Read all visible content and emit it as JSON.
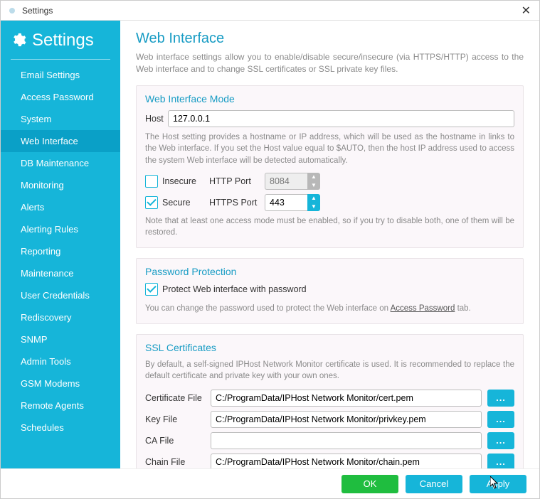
{
  "window": {
    "title": "Settings"
  },
  "sidebar": {
    "header": "Settings",
    "items": [
      "Email Settings",
      "Access Password",
      "System",
      "Web Interface",
      "DB Maintenance",
      "Monitoring",
      "Alerts",
      "Alerting Rules",
      "Reporting",
      "Maintenance",
      "User Credentials",
      "Rediscovery",
      "SNMP",
      "Admin Tools",
      "GSM Modems",
      "Remote Agents",
      "Schedules"
    ],
    "active_index": 3
  },
  "page": {
    "title": "Web Interface",
    "subtitle": "Web interface settings allow you to enable/disable secure/insecure (via HTTPS/HTTP) access to the Web interface and to change SSL certificates or SSL private key files."
  },
  "mode": {
    "section_title": "Web Interface Mode",
    "host_label": "Host",
    "host_value": "127.0.0.1",
    "host_note": "The Host setting provides a hostname or IP address, which will be used as the hostname in links to the Web interface. If you set the Host value equal to $AUTO, then the host IP address used to access the system Web interface will be detected automatically.",
    "insecure": {
      "checked": false,
      "label": "Insecure",
      "port_label": "HTTP Port",
      "port": "8084"
    },
    "secure": {
      "checked": true,
      "label": "Secure",
      "port_label": "HTTPS Port",
      "port": "443"
    },
    "bottom_note": "Note that at least one access mode must be enabled, so if you try to disable both, one of them will be restored."
  },
  "password": {
    "section_title": "Password Protection",
    "checked": true,
    "label": "Protect Web interface with password",
    "note_pre": "You can change the password used to protect the Web interface on ",
    "note_link": "Access Password",
    "note_post": " tab."
  },
  "ssl": {
    "section_title": "SSL Certificates",
    "note": "By default, a self-signed IPHost Network Monitor certificate is used. It is recommended to replace the default certificate and private key with your own ones.",
    "files": [
      {
        "label": "Certificate File",
        "value": "C:/ProgramData/IPHost Network Monitor/cert.pem"
      },
      {
        "label": "Key File",
        "value": "C:/ProgramData/IPHost Network Monitor/privkey.pem"
      },
      {
        "label": "CA File",
        "value": ""
      },
      {
        "label": "Chain File",
        "value": "C:/ProgramData/IPHost Network Monitor/chain.pem"
      }
    ]
  },
  "footer": {
    "ok": "OK",
    "cancel": "Cancel",
    "apply": "Apply"
  },
  "colors": {
    "accent": "#16b5d9",
    "ok": "#1fbd3f"
  }
}
